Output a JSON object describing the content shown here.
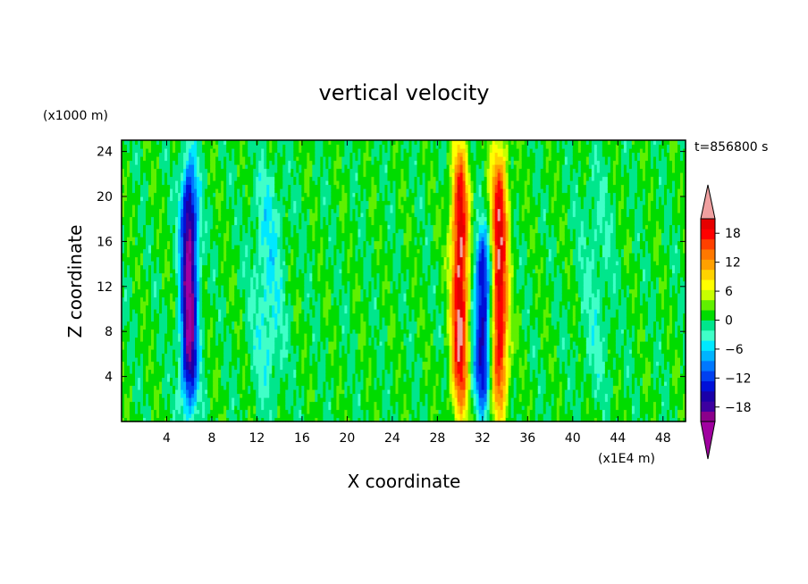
{
  "chart_data": {
    "type": "heatmap",
    "title": "vertical velocity",
    "xlabel": "X coordinate",
    "ylabel": "Z coordinate",
    "x_unit": "(x1E4 m)",
    "y_unit": "(x1000 m)",
    "time_label": "t=856800 s",
    "xlim": [
      0,
      50
    ],
    "ylim": [
      0,
      25
    ],
    "x_ticks": [
      4,
      8,
      12,
      16,
      20,
      24,
      28,
      32,
      36,
      40,
      44,
      48
    ],
    "y_ticks": [
      4,
      8,
      12,
      16,
      20,
      24
    ],
    "colorbar": {
      "min": -21,
      "max": 21,
      "step": 3,
      "tick_values": [
        18,
        12,
        6,
        0,
        -6,
        -12,
        -18
      ],
      "extend": "both",
      "colors": [
        "#8b008b",
        "#3d00a0",
        "#1a00a8",
        "#0010d8",
        "#0040f0",
        "#0078ff",
        "#00b4ff",
        "#00e8ff",
        "#40ffc8",
        "#00e68c",
        "#00dc00",
        "#60f000",
        "#c8ff00",
        "#ffff00",
        "#ffd200",
        "#ffa000",
        "#ff7800",
        "#ff4000",
        "#ff0000",
        "#e60000"
      ],
      "under_color": "#a000a0",
      "over_color": "#f0a0a0"
    },
    "features": [
      {
        "kind": "downdraft",
        "x": 6,
        "z_bottom": 1,
        "z_top": 23,
        "peak": -22
      },
      {
        "kind": "updraft",
        "x": 30,
        "z_bottom": 0.5,
        "z_top": 24.5,
        "peak": 21
      },
      {
        "kind": "downdraft",
        "x": 32,
        "z_bottom": 1,
        "z_top": 17,
        "peak": -17
      },
      {
        "kind": "updraft",
        "x": 33.5,
        "z_bottom": 0.5,
        "z_top": 24.5,
        "peak": 20
      },
      {
        "kind": "weak-downdraft",
        "x": 13,
        "z_bottom": 2,
        "z_top": 23,
        "peak": -5
      },
      {
        "kind": "weak-downdraft",
        "x": 42,
        "z_bottom": 2,
        "z_top": 23,
        "peak": -3
      }
    ]
  }
}
